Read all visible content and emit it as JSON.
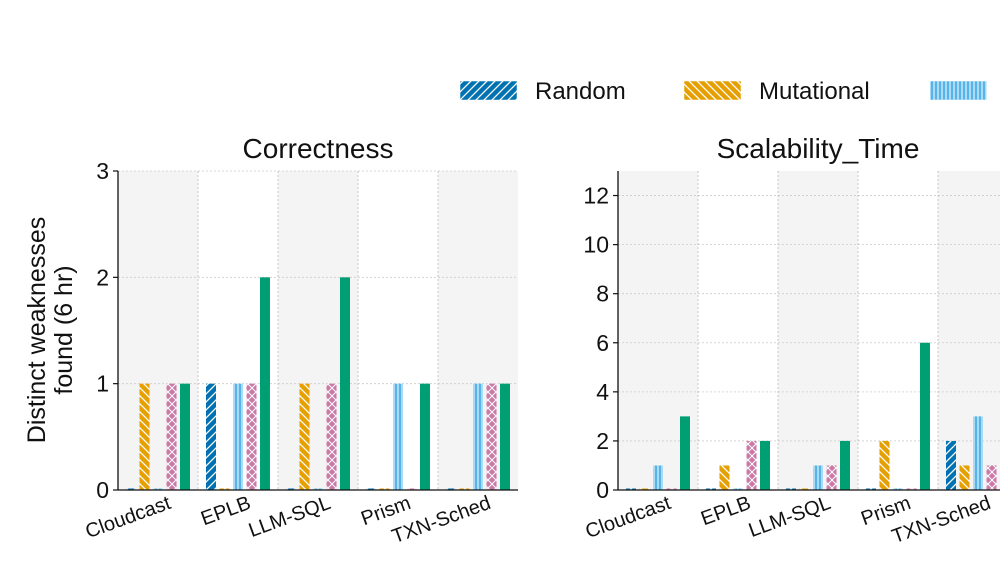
{
  "colors": {
    "random": "#0072B2",
    "mutational": "#E69F00",
    "third": "#56B4E9",
    "fourth": "#CC79A7",
    "fifth": "#009E73",
    "panel_band": "#f4f4f4",
    "grid": "#cccccc"
  },
  "legend": [
    {
      "label": "Random",
      "color": "#0072B2",
      "pattern": "diag-fwd"
    },
    {
      "label": "Mutational",
      "color": "#E69F00",
      "pattern": "diag-back"
    },
    {
      "label": "",
      "color": "#56B4E9",
      "pattern": "vertical"
    }
  ],
  "ylabel_lines": [
    "Distinct weaknesses",
    "found (6 hr)"
  ],
  "chart_data": [
    {
      "type": "bar",
      "title": "Correctness",
      "categories": [
        "Cloudcast",
        "EPLB",
        "LLM-SQL",
        "Prism",
        "TXN-Sched"
      ],
      "ylim": [
        0,
        3
      ],
      "yticks": [
        0,
        1,
        2,
        3
      ],
      "grid": true,
      "legend_position": "top-right",
      "series": [
        {
          "name": "Random",
          "pattern": "diag-fwd",
          "color": "#0072B2",
          "values": [
            0,
            1,
            0,
            0,
            0
          ]
        },
        {
          "name": "Mutational",
          "pattern": "diag-back",
          "color": "#E69F00",
          "values": [
            1,
            0,
            1,
            0,
            0
          ]
        },
        {
          "pattern": "vertical",
          "color": "#56B4E9",
          "values": [
            0,
            1,
            0,
            1,
            1
          ]
        },
        {
          "pattern": "crosshatch",
          "color": "#CC79A7",
          "values": [
            1,
            1,
            1,
            0,
            1
          ]
        },
        {
          "pattern": "solid",
          "color": "#009E73",
          "values": [
            1,
            2,
            2,
            1,
            1
          ]
        }
      ]
    },
    {
      "type": "bar",
      "title": "Scalability_Time",
      "categories": [
        "Cloudcast",
        "EPLB",
        "LLM-SQL",
        "Prism",
        "TXN-Sched"
      ],
      "ylim": [
        0,
        13
      ],
      "yticks": [
        0,
        2,
        4,
        6,
        8,
        10,
        12
      ],
      "grid": true,
      "series": [
        {
          "name": "Random",
          "pattern": "diag-fwd",
          "color": "#0072B2",
          "values": [
            0,
            0,
            0,
            0,
            2
          ]
        },
        {
          "name": "Mutational",
          "pattern": "diag-back",
          "color": "#E69F00",
          "values": [
            0,
            1,
            0,
            2,
            1
          ]
        },
        {
          "pattern": "vertical",
          "color": "#56B4E9",
          "values": [
            1,
            0,
            1,
            0,
            3
          ]
        },
        {
          "pattern": "crosshatch",
          "color": "#CC79A7",
          "values": [
            0,
            2,
            1,
            0,
            1
          ]
        },
        {
          "pattern": "solid",
          "color": "#009E73",
          "values": [
            3,
            2,
            2,
            6,
            0
          ]
        }
      ]
    }
  ]
}
